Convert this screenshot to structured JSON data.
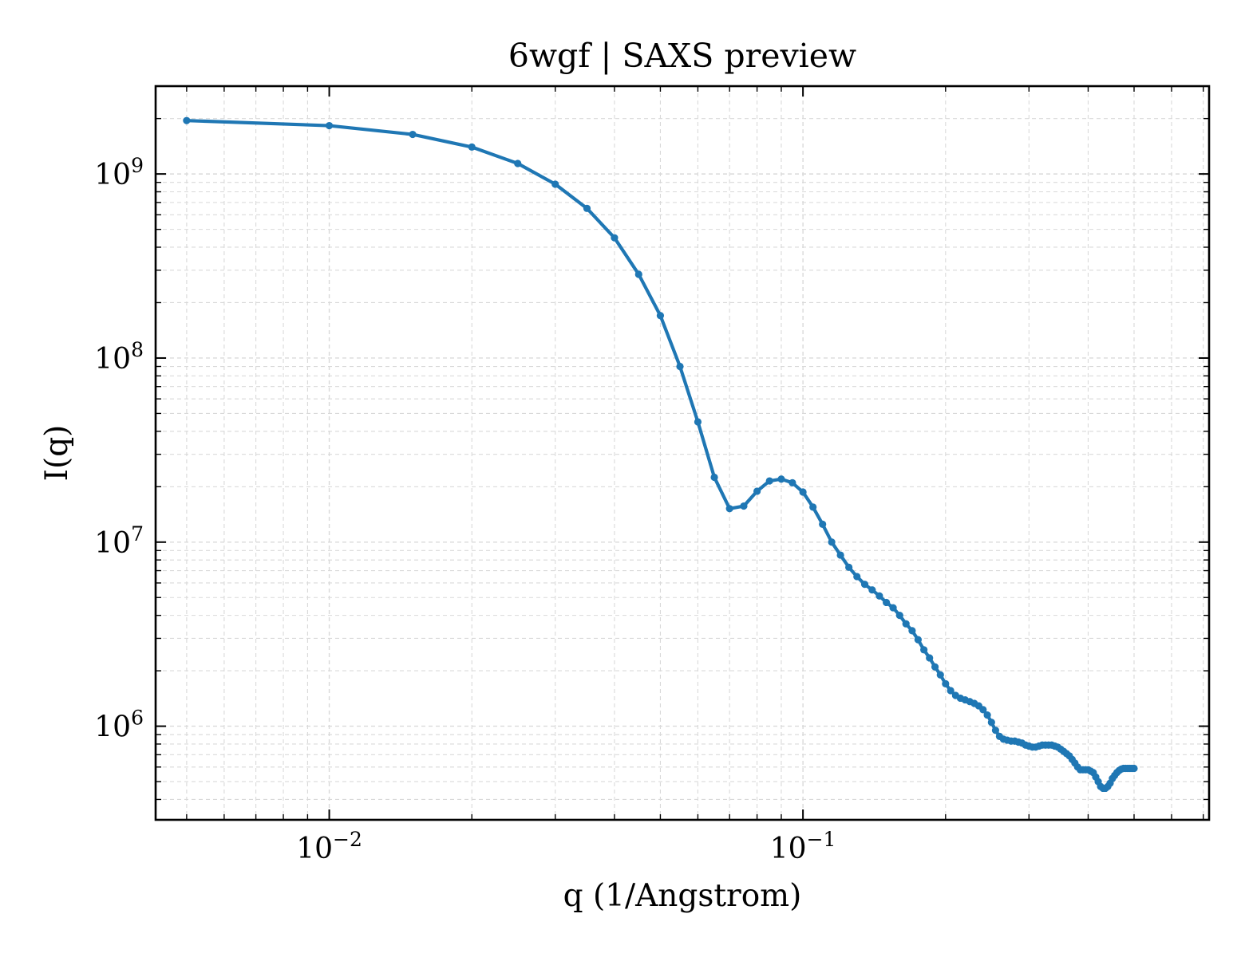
{
  "chart_data": {
    "type": "line",
    "title": "6wgf | SAXS preview",
    "xlabel": "q (1/Angstrom)",
    "ylabel": "I(q)",
    "xscale": "log",
    "yscale": "log",
    "xlim": [
      0.0043,
      0.72
    ],
    "ylim": [
      310000,
      3000000000
    ],
    "grid": true,
    "legend": "none",
    "colors": {
      "series": "#1f77b4",
      "axes": "#000000",
      "grid": "#d9d9d9"
    },
    "x_ticks": [
      {
        "value": 0.01,
        "base": "10",
        "exp": "−2"
      },
      {
        "value": 0.1,
        "base": "10",
        "exp": "−1"
      }
    ],
    "y_ticks": [
      {
        "value": 1000000,
        "base": "10",
        "exp": "6"
      },
      {
        "value": 10000000,
        "base": "10",
        "exp": "7"
      },
      {
        "value": 100000000,
        "base": "10",
        "exp": "8"
      },
      {
        "value": 1000000000,
        "base": "10",
        "exp": "9"
      }
    ],
    "series": [
      {
        "x": [
          0.005,
          0.01,
          0.015,
          0.02,
          0.025,
          0.03,
          0.035,
          0.04,
          0.045,
          0.05,
          0.055,
          0.06,
          0.065,
          0.07,
          0.075,
          0.08,
          0.085,
          0.09,
          0.095,
          0.1,
          0.105,
          0.11,
          0.115,
          0.12,
          0.125,
          0.13,
          0.135,
          0.14,
          0.145,
          0.15,
          0.155,
          0.16,
          0.165,
          0.17,
          0.175,
          0.18,
          0.185,
          0.19,
          0.195,
          0.2,
          0.205,
          0.21,
          0.215,
          0.22,
          0.225,
          0.23,
          0.235,
          0.24,
          0.245,
          0.25,
          0.255,
          0.26,
          0.265,
          0.27,
          0.275,
          0.28,
          0.285,
          0.29,
          0.295,
          0.3,
          0.305,
          0.31,
          0.315,
          0.32,
          0.325,
          0.33,
          0.335,
          0.34,
          0.345,
          0.35,
          0.355,
          0.36,
          0.365,
          0.37,
          0.375,
          0.38,
          0.385,
          0.39,
          0.395,
          0.4,
          0.405,
          0.41,
          0.415,
          0.42,
          0.425,
          0.43,
          0.435,
          0.44,
          0.445,
          0.45,
          0.455,
          0.46,
          0.465,
          0.47,
          0.475,
          0.48,
          0.485,
          0.49,
          0.495,
          0.5
        ],
        "y": [
          1950000000,
          1830000000,
          1640000000,
          1400000000,
          1140000000,
          880000000,
          650000000,
          450000000,
          285000000,
          170000000,
          90000000,
          45000000,
          22500000,
          15200000,
          15700000,
          18900000,
          21500000,
          22000000,
          21000000,
          18700000,
          15500000,
          12500000,
          10000000,
          8500000,
          7300000,
          6500000,
          5900000,
          5500000,
          5100000,
          4700000,
          4400000,
          4000000,
          3600000,
          3300000,
          2950000,
          2600000,
          2350000,
          2100000,
          1900000,
          1700000,
          1560000,
          1470000,
          1420000,
          1390000,
          1360000,
          1330000,
          1290000,
          1230000,
          1150000,
          1050000,
          950000,
          880000,
          850000,
          840000,
          830000,
          830000,
          820000,
          810000,
          790000,
          780000,
          770000,
          770000,
          780000,
          790000,
          790000,
          790000,
          790000,
          780000,
          770000,
          750000,
          730000,
          710000,
          690000,
          660000,
          630000,
          600000,
          580000,
          580000,
          580000,
          580000,
          570000,
          560000,
          530000,
          500000,
          470000,
          460000,
          460000,
          470000,
          490000,
          520000,
          540000,
          560000,
          575000,
          585000,
          590000,
          590000,
          590000,
          590000,
          590000,
          590000
        ]
      }
    ]
  }
}
